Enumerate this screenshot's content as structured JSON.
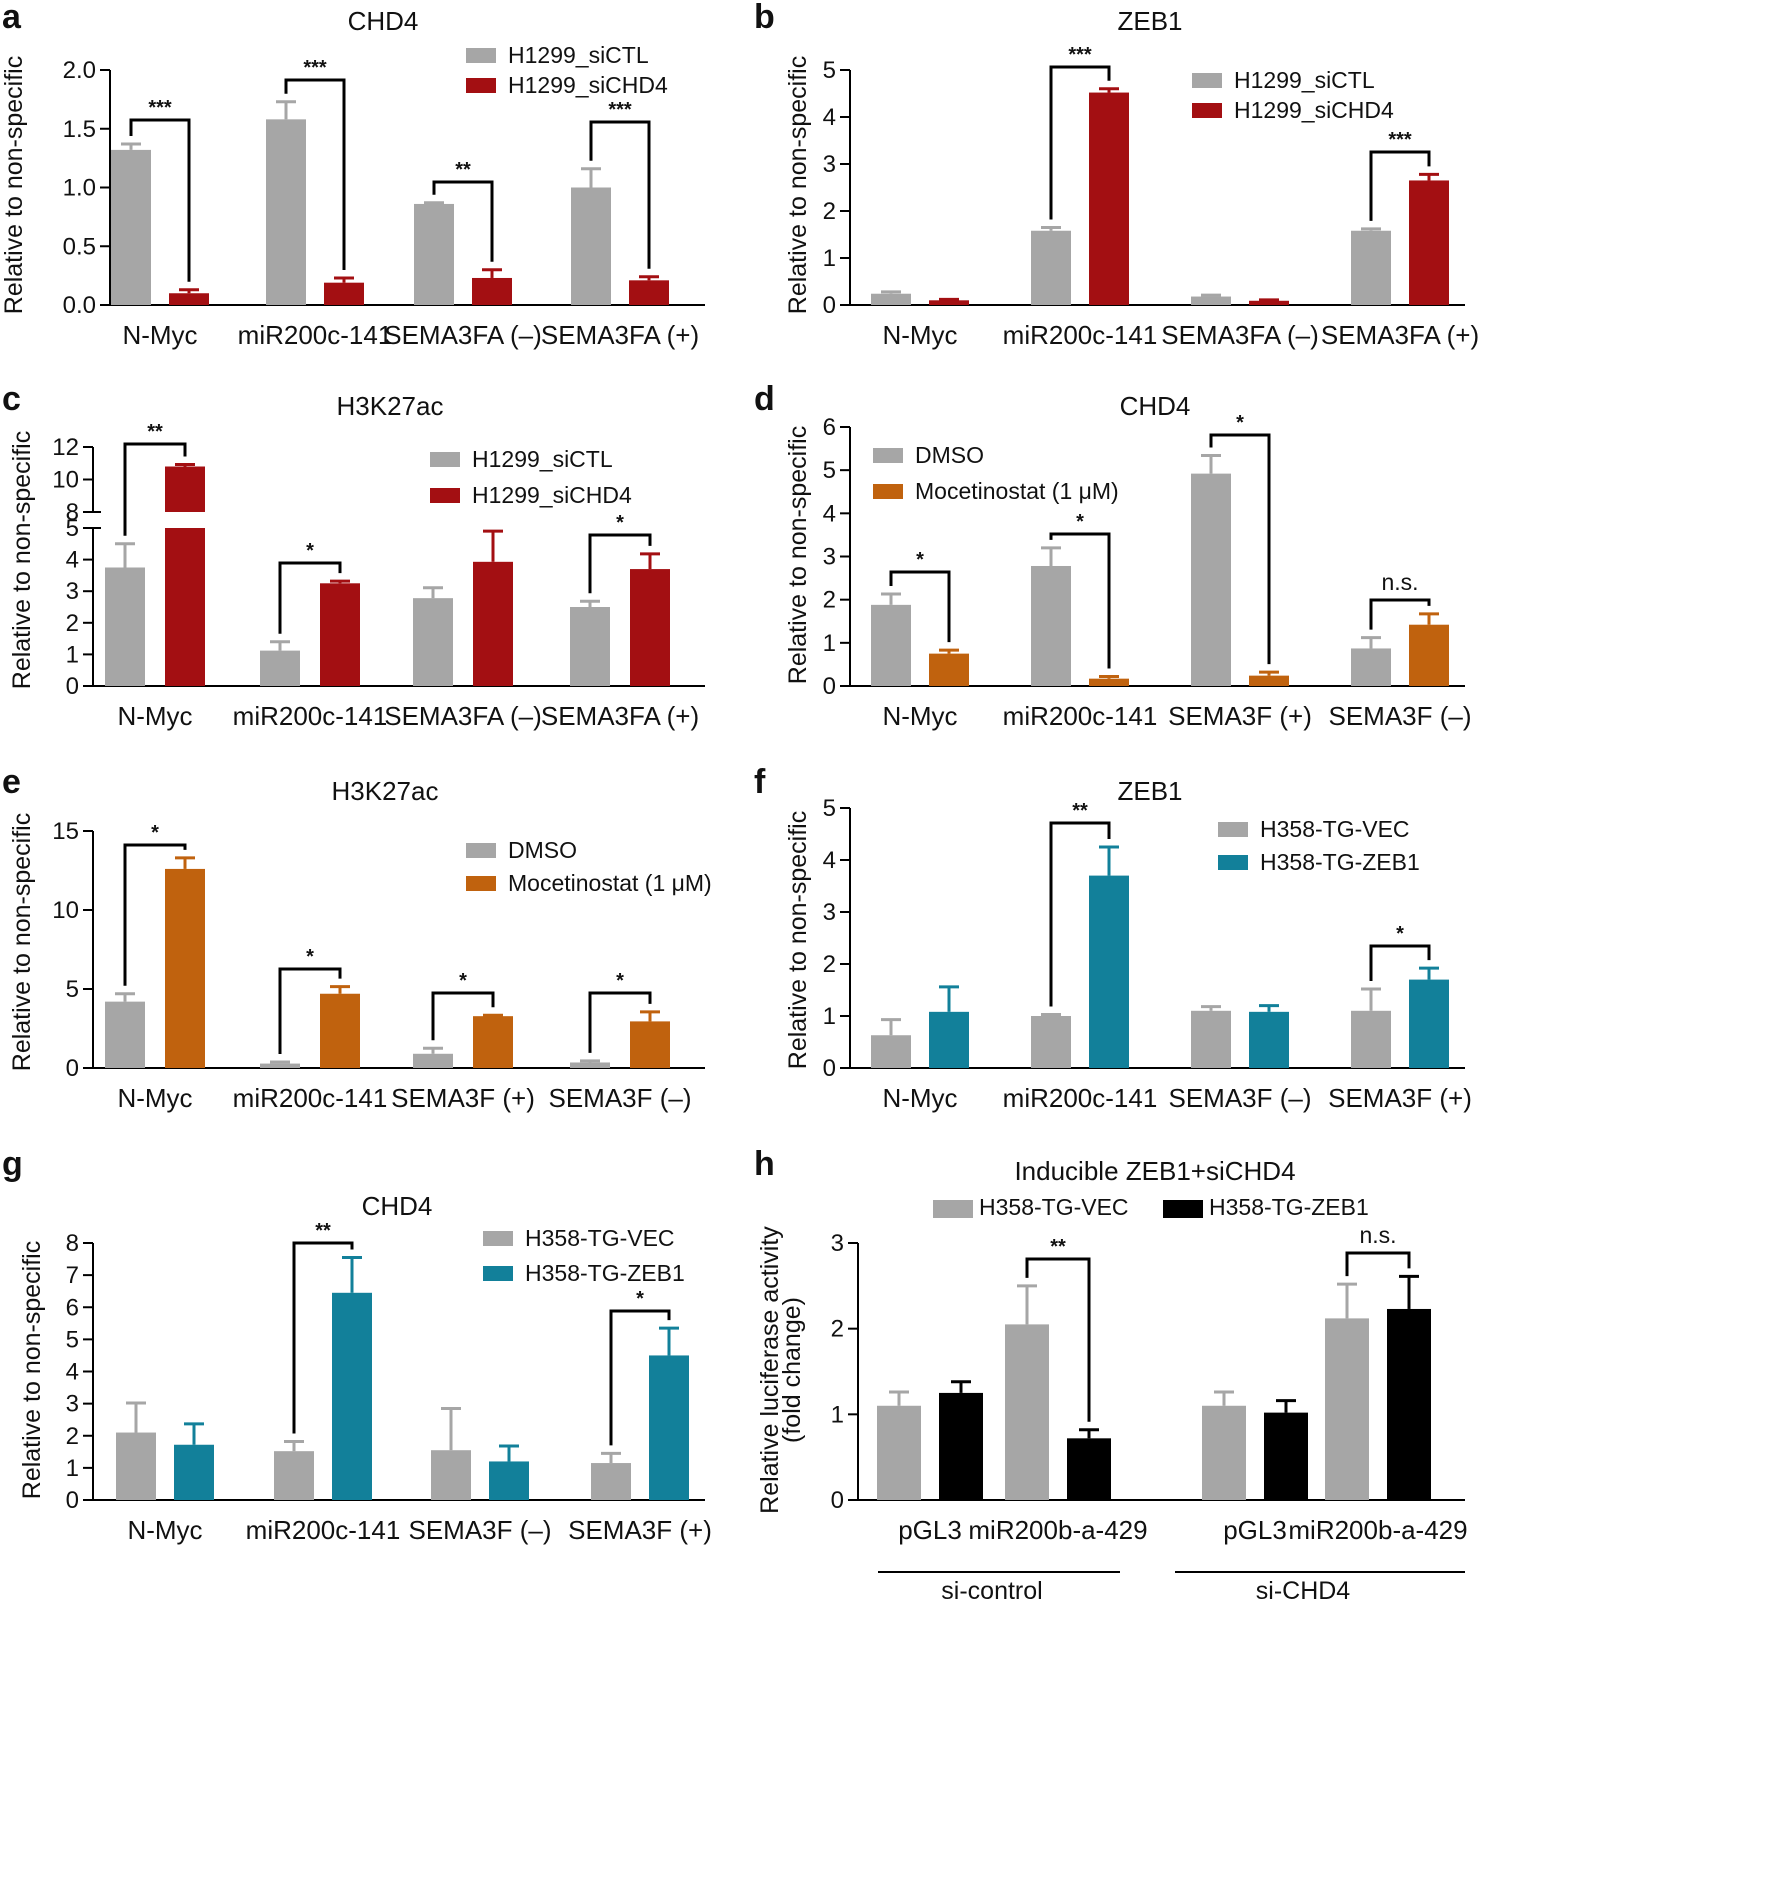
{
  "colors": {
    "gray": "#a6a6a6",
    "red": "#a30f12",
    "orange": "#c0620e",
    "teal": "#12809a",
    "black": "#000000"
  },
  "chart_data": [
    {
      "panel": "a",
      "type": "bar",
      "title": "CHD4",
      "ylabel": "Relative to non-specific",
      "ylim": [
        0,
        2.0
      ],
      "yticks": [
        "0.0",
        "0.5",
        "1.0",
        "1.5",
        "2.0"
      ],
      "categories": [
        "N-Myc",
        "miR200c-141",
        "SEMA3FA (–)",
        "SEMA3FA (+)"
      ],
      "series": [
        {
          "name": "H1299_siCTL",
          "color": "gray",
          "values": [
            1.32,
            1.58,
            0.86,
            1.0
          ],
          "errors": [
            0.05,
            0.15,
            0.01,
            0.16
          ]
        },
        {
          "name": "H1299_siCHD4",
          "color": "red",
          "values": [
            0.1,
            0.19,
            0.23,
            0.21
          ],
          "errors": [
            0.03,
            0.04,
            0.07,
            0.03
          ]
        }
      ],
      "significance": [
        "***",
        "***",
        "**",
        "***"
      ],
      "legend_position": "top-right"
    },
    {
      "panel": "b",
      "type": "bar",
      "title": "ZEB1",
      "ylabel": "Relative to non-specific",
      "ylim": [
        0,
        5
      ],
      "yticks": [
        "0",
        "1",
        "2",
        "3",
        "4",
        "5"
      ],
      "categories": [
        "N-Myc",
        "miR200c-141",
        "SEMA3FA (–)",
        "SEMA3FA (+)"
      ],
      "series": [
        {
          "name": "H1299_siCTL",
          "color": "gray",
          "values": [
            0.24,
            1.58,
            0.18,
            1.58
          ],
          "errors": [
            0.04,
            0.07,
            0.03,
            0.04
          ]
        },
        {
          "name": "H1299_siCHD4",
          "color": "red",
          "values": [
            0.1,
            4.52,
            0.09,
            2.65
          ],
          "errors": [
            0.02,
            0.08,
            0.02,
            0.13
          ]
        }
      ],
      "significance": [
        "",
        "***",
        "",
        "***"
      ],
      "legend_position": "top-right"
    },
    {
      "panel": "c",
      "type": "bar",
      "title": "H3K27ac",
      "ylabel": "Relative to non-specific",
      "ylim": [
        0,
        12
      ],
      "axis_break": [
        5,
        8
      ],
      "yticks": [
        "0",
        "1",
        "2",
        "3",
        "4",
        "5",
        "8",
        "10",
        "12"
      ],
      "categories": [
        "N-Myc",
        "miR200c-141",
        "SEMA3FA (–)",
        "SEMA3FA (+)"
      ],
      "series": [
        {
          "name": "H1299_siCTL",
          "color": "gray",
          "values": [
            3.75,
            1.12,
            2.78,
            2.5
          ],
          "errors": [
            0.75,
            0.28,
            0.33,
            0.18
          ]
        },
        {
          "name": "H1299_siCHD4",
          "color": "red",
          "values": [
            10.8,
            3.25,
            3.93,
            3.7
          ],
          "errors": [
            0.12,
            0.07,
            0.97,
            0.48
          ]
        }
      ],
      "significance": [
        "**",
        "*",
        "",
        "*"
      ],
      "legend_position": "top-right"
    },
    {
      "panel": "d",
      "type": "bar",
      "title": "CHD4",
      "ylabel": "Relative to non-specific",
      "ylim": [
        0,
        6
      ],
      "yticks": [
        "0",
        "1",
        "2",
        "3",
        "4",
        "5",
        "6"
      ],
      "categories": [
        "N-Myc",
        "miR200c-141",
        "SEMA3F (+)",
        "SEMA3F (–)"
      ],
      "series": [
        {
          "name": "DMSO",
          "color": "gray",
          "values": [
            1.88,
            2.78,
            4.92,
            0.87
          ],
          "errors": [
            0.25,
            0.42,
            0.42,
            0.25
          ]
        },
        {
          "name": "Mocetinostat (1 μM)",
          "color": "orange",
          "values": [
            0.75,
            0.17,
            0.24,
            1.42
          ],
          "errors": [
            0.08,
            0.05,
            0.08,
            0.25
          ]
        }
      ],
      "significance": [
        "*",
        "*",
        "*",
        "n.s."
      ],
      "legend_position": "top-left"
    },
    {
      "panel": "e",
      "type": "bar",
      "title": "H3K27ac",
      "ylabel": "Relative to non-specific",
      "ylim": [
        0,
        15
      ],
      "yticks": [
        "0",
        "5",
        "10",
        "15"
      ],
      "categories": [
        "N-Myc",
        "miR200c-141",
        "SEMA3F (+)",
        "SEMA3F (–)"
      ],
      "series": [
        {
          "name": "DMSO",
          "color": "gray",
          "values": [
            4.2,
            0.28,
            0.9,
            0.35
          ],
          "errors": [
            0.5,
            0.1,
            0.35,
            0.1
          ]
        },
        {
          "name": "Mocetinostat (1 μM)",
          "color": "orange",
          "values": [
            12.6,
            4.7,
            3.28,
            2.95
          ],
          "errors": [
            0.7,
            0.45,
            0.06,
            0.6
          ]
        }
      ],
      "significance": [
        "*",
        "*",
        "*",
        "*"
      ],
      "legend_position": "top-right"
    },
    {
      "panel": "f",
      "type": "bar",
      "title": "ZEB1",
      "ylabel": "Relative to non-specific",
      "ylim": [
        0,
        5
      ],
      "yticks": [
        "0",
        "1",
        "2",
        "3",
        "4",
        "5"
      ],
      "categories": [
        "N-Myc",
        "miR200c-141",
        "SEMA3F (–)",
        "SEMA3F (+)"
      ],
      "series": [
        {
          "name": "H358-TG-VEC",
          "color": "gray",
          "values": [
            0.63,
            1.0,
            1.1,
            1.1
          ],
          "errors": [
            0.3,
            0.03,
            0.08,
            0.42
          ]
        },
        {
          "name": "H358-TG-ZEB1",
          "color": "teal",
          "values": [
            1.08,
            3.7,
            1.08,
            1.7
          ],
          "errors": [
            0.48,
            0.55,
            0.12,
            0.22
          ]
        }
      ],
      "significance": [
        "",
        "**",
        "",
        "*"
      ],
      "legend_position": "top-right"
    },
    {
      "panel": "g",
      "type": "bar",
      "title": "CHD4",
      "ylabel": "Relative to non-specific",
      "ylim": [
        0,
        8
      ],
      "yticks": [
        "0",
        "1",
        "2",
        "3",
        "4",
        "5",
        "6",
        "7",
        "8"
      ],
      "categories": [
        "N-Myc",
        "miR200c-141",
        "SEMA3F (–)",
        "SEMA3F (+)"
      ],
      "series": [
        {
          "name": "H358-TG-VEC",
          "color": "gray",
          "values": [
            2.1,
            1.52,
            1.55,
            1.15
          ],
          "errors": [
            0.92,
            0.3,
            1.3,
            0.3
          ]
        },
        {
          "name": "H358-TG-ZEB1",
          "color": "teal",
          "values": [
            1.72,
            6.45,
            1.2,
            4.5
          ],
          "errors": [
            0.65,
            1.1,
            0.48,
            0.85
          ]
        }
      ],
      "significance": [
        "",
        "**",
        "",
        "*"
      ],
      "legend_position": "top-right"
    },
    {
      "panel": "h",
      "type": "bar",
      "title": "Inducible ZEB1+siCHD4",
      "ylabel": "Relative luciferase activity (fold change)",
      "ylabel_lines": [
        "Relative luciferase activity",
        "(fold change)"
      ],
      "ylim": [
        0,
        3
      ],
      "yticks": [
        "0",
        "1",
        "2",
        "3"
      ],
      "categories": [
        "pGL3",
        "miR200b-a-429",
        "pGL3",
        "miR200b-a-429"
      ],
      "groups": [
        "si-control",
        "si-CHD4"
      ],
      "series": [
        {
          "name": "H358-TG-VEC",
          "color": "gray",
          "values": [
            1.1,
            2.05,
            1.1,
            2.12
          ],
          "errors": [
            0.16,
            0.45,
            0.16,
            0.4
          ]
        },
        {
          "name": "H358-TG-ZEB1",
          "color": "black",
          "values": [
            1.25,
            0.72,
            1.02,
            2.23
          ],
          "errors": [
            0.13,
            0.1,
            0.14,
            0.38
          ]
        }
      ],
      "significance": [
        "",
        "**",
        "",
        "n.s."
      ],
      "legend_position": "top"
    }
  ]
}
